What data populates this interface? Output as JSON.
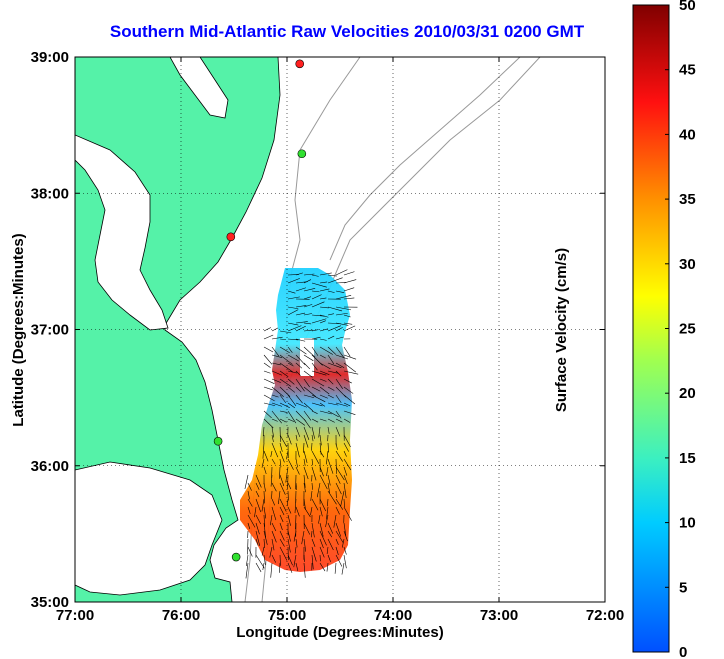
{
  "chart_data": {
    "type": "heatmap",
    "title": "Southern Mid-Atlantic Raw Velocities 2010/03/31 0200 GMT",
    "xlabel": "Longitude (Degrees:Minutes)",
    "ylabel": "Latitude (Degrees:Minutes)",
    "xlim": [
      -77,
      -72
    ],
    "ylim": [
      35,
      39
    ],
    "x_ticks": [
      "77:00",
      "76:00",
      "75:00",
      "74:00",
      "73:00",
      "72:00"
    ],
    "y_ticks": [
      "39:00",
      "38:00",
      "37:00",
      "36:00",
      "35:00"
    ],
    "grid": true,
    "colorbar": {
      "label": "Surface Velocity (cm/s)",
      "min": 0,
      "max": 50,
      "ticks": [
        "0",
        "5",
        "10",
        "15",
        "20",
        "25",
        "30",
        "35",
        "40",
        "45",
        "50"
      ]
    },
    "stations": [
      {
        "lon": -74.88,
        "lat": 38.95,
        "color": "#ff2020"
      },
      {
        "lon": -74.86,
        "lat": 38.29,
        "color": "#30e030"
      },
      {
        "lon": -75.53,
        "lat": 37.68,
        "color": "#ff2020"
      },
      {
        "lon": -75.65,
        "lat": 36.18,
        "color": "#30e030"
      },
      {
        "lon": -75.48,
        "lat": 35.33,
        "color": "#30e030"
      }
    ],
    "colors": {
      "land": "#55f2a8",
      "title": "#0000ff",
      "coast": "#000000",
      "bathymetry": "#999999",
      "grid": "#000000"
    }
  }
}
